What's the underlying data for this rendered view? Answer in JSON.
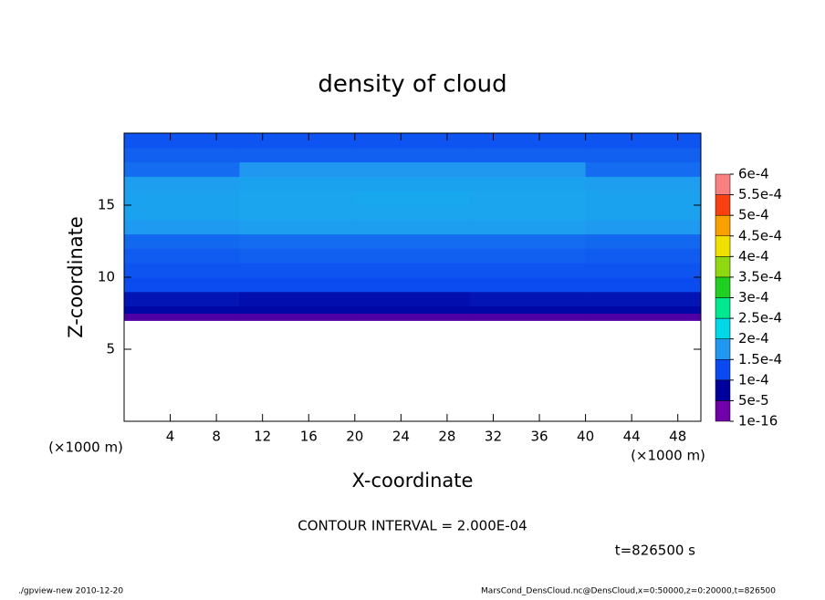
{
  "chart_data": {
    "type": "contour",
    "title": "density of cloud",
    "xlabel": "X-coordinate",
    "ylabel": "Z-coordinate",
    "x_unit": "(×1000 m)",
    "y_unit": "(×1000 m)",
    "xlim": [
      0,
      50
    ],
    "ylim": [
      0,
      20
    ],
    "xticks": [
      4,
      8,
      12,
      16,
      20,
      24,
      28,
      32,
      36,
      40,
      44,
      48
    ],
    "yticks": [
      5,
      10,
      15
    ],
    "x_edges": [
      0,
      10,
      20,
      30,
      40,
      50
    ],
    "z_edges": [
      7,
      7.5,
      8,
      9,
      10,
      11,
      12,
      13,
      14,
      15,
      16,
      17,
      18,
      19,
      20
    ],
    "values": [
      [
        3e-05,
        3e-05,
        3e-05,
        3e-05,
        3e-05
      ],
      [
        6e-05,
        6e-05,
        6e-05,
        6e-05,
        6e-05
      ],
      [
        8e-05,
        7e-05,
        7e-05,
        8e-05,
        8e-05
      ],
      [
        0.000105,
        0.000105,
        0.000105,
        0.000105,
        0.000105
      ],
      [
        0.000115,
        0.000115,
        0.000115,
        0.000115,
        0.000115
      ],
      [
        0.000125,
        0.00013,
        0.00013,
        0.00013,
        0.000125
      ],
      [
        0.00014,
        0.000145,
        0.000145,
        0.000145,
        0.00014
      ],
      [
        0.000155,
        0.00016,
        0.00016,
        0.00016,
        0.000155
      ],
      [
        0.000165,
        0.00017,
        0.00017,
        0.00017,
        0.000165
      ],
      [
        0.000165,
        0.00017,
        0.000175,
        0.00017,
        0.000165
      ],
      [
        0.00016,
        0.000165,
        0.000165,
        0.000165,
        0.00016
      ],
      [
        0.000145,
        0.00015,
        0.00015,
        0.00015,
        0.000145
      ],
      [
        0.00013,
        0.00013,
        0.00013,
        0.00013,
        0.00013
      ],
      [
        0.000115,
        0.000115,
        0.000115,
        0.000115,
        0.000115
      ]
    ],
    "levels": [
      {
        "value": 1e-16,
        "label": "1e-16"
      },
      {
        "value": 5e-05,
        "label": "5e-5"
      },
      {
        "value": 0.0001,
        "label": "1e-4"
      },
      {
        "value": 0.00015,
        "label": "1.5e-4"
      },
      {
        "value": 0.0002,
        "label": "2e-4"
      },
      {
        "value": 0.00025,
        "label": "2.5e-4"
      },
      {
        "value": 0.0003,
        "label": "3e-4"
      },
      {
        "value": 0.00035,
        "label": "3.5e-4"
      },
      {
        "value": 0.0004,
        "label": "4e-4"
      },
      {
        "value": 0.00045,
        "label": "4.5e-4"
      },
      {
        "value": 0.0005,
        "label": "5e-4"
      },
      {
        "value": 0.00055,
        "label": "5.5e-4"
      },
      {
        "value": 0.0006,
        "label": "6e-4"
      }
    ],
    "colors": [
      "#7000a8",
      "#00009c",
      "#0a48f0",
      "#2098f0",
      "#00d8e8",
      "#00e890",
      "#20d020",
      "#90d810",
      "#f0e000",
      "#f8a000",
      "#f84010",
      "#f88080"
    ],
    "contour_note": "CONTOUR INTERVAL = 2.000E-04",
    "time_label": "t=826500 s",
    "footer_left": "./gpview-new   2010-12-20",
    "footer_right": "MarsCond_DensCloud.nc@DensCloud,x=0:50000,z=0:20000,t=826500"
  }
}
